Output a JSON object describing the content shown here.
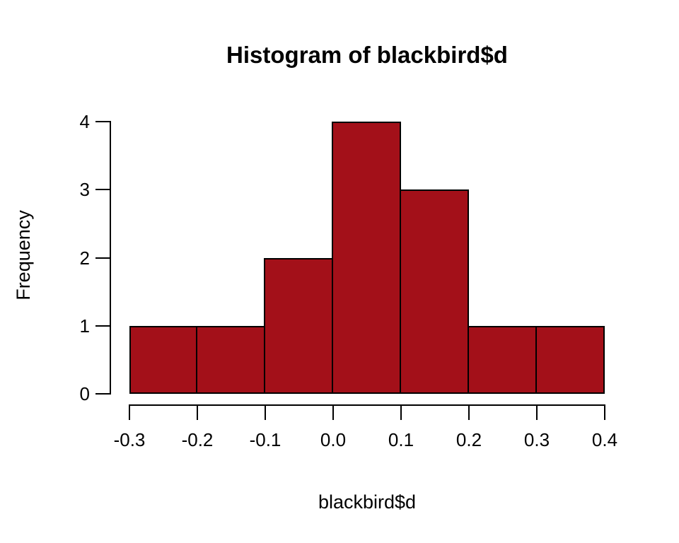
{
  "chart_data": {
    "type": "bar",
    "subtype": "histogram",
    "title": "Histogram of blackbird$d",
    "xlabel": "blackbird$d",
    "ylabel": "Frequency",
    "breaks": [
      -0.3,
      -0.2,
      -0.1,
      0.0,
      0.1,
      0.2,
      0.3,
      0.4
    ],
    "counts": [
      1,
      1,
      2,
      4,
      3,
      1,
      1
    ],
    "xlim": [
      -0.3,
      0.4
    ],
    "ylim": [
      0,
      4
    ],
    "xticks": [
      {
        "value": -0.3,
        "label": "-0.3"
      },
      {
        "value": -0.2,
        "label": "-0.2"
      },
      {
        "value": -0.1,
        "label": "-0.1"
      },
      {
        "value": 0.0,
        "label": "0.0"
      },
      {
        "value": 0.1,
        "label": "0.1"
      },
      {
        "value": 0.2,
        "label": "0.2"
      },
      {
        "value": 0.3,
        "label": "0.3"
      },
      {
        "value": 0.4,
        "label": "0.4"
      }
    ],
    "yticks": [
      {
        "value": 0,
        "label": "0"
      },
      {
        "value": 1,
        "label": "1"
      },
      {
        "value": 2,
        "label": "2"
      },
      {
        "value": 3,
        "label": "3"
      },
      {
        "value": 4,
        "label": "4"
      }
    ],
    "grid": false,
    "legend": null,
    "colors": {
      "bar_fill": "#A31019",
      "bar_stroke": "#000000",
      "axis": "#000000",
      "text": "#000000",
      "background": "#FFFFFF"
    }
  }
}
